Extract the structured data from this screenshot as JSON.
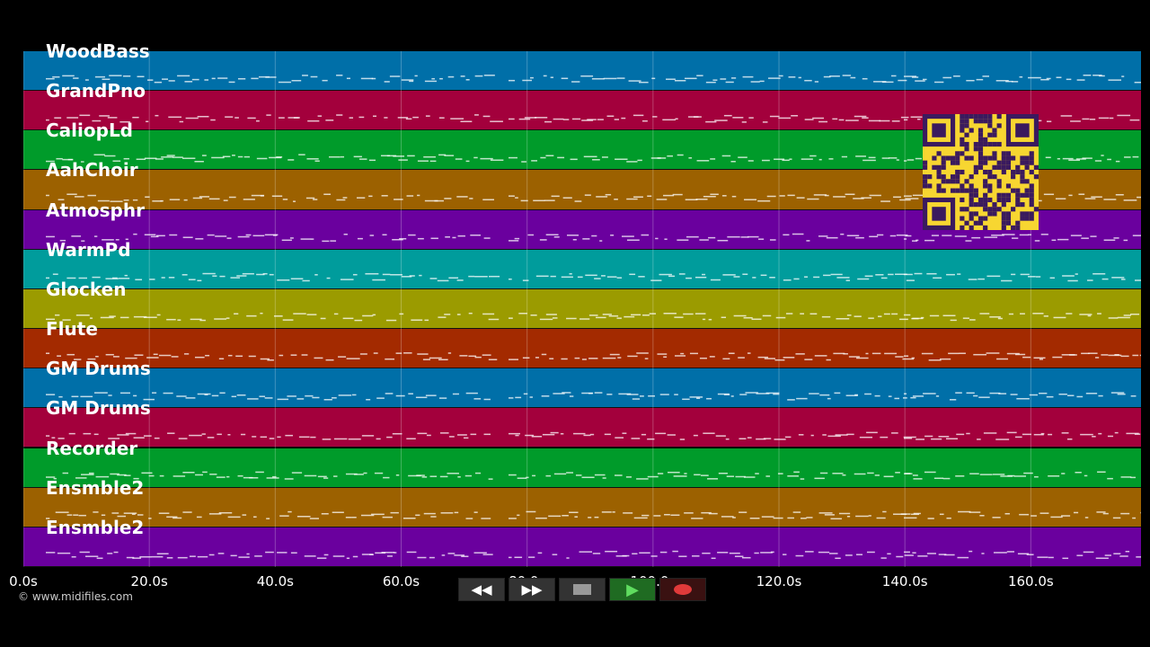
{
  "tracks": [
    {
      "name": "WoodBass",
      "color": "#006fa8"
    },
    {
      "name": "GrandPno",
      "color": "#a3003c"
    },
    {
      "name": "CaliopLd",
      "color": "#009b2a"
    },
    {
      "name": "AahChoir",
      "color": "#9c6100"
    },
    {
      "name": "Atmosphr",
      "color": "#6a009e"
    },
    {
      "name": "WarmPd",
      "color": "#009c9c"
    },
    {
      "name": "Glocken",
      "color": "#9b9b00"
    },
    {
      "name": "Flute",
      "color": "#a32a00"
    },
    {
      "name": "GM Drums",
      "color": "#006fa8"
    },
    {
      "name": "GM Drums",
      "color": "#a3003c"
    },
    {
      "name": "Recorder",
      "color": "#009b2a"
    },
    {
      "name": "Ensmble2",
      "color": "#9c6100"
    },
    {
      "name": "Ensmble2",
      "color": "#6a009e"
    }
  ],
  "time_axis": {
    "ticks": [
      "0.0s",
      "20.0s",
      "40.0s",
      "60.0s",
      "80.0s",
      "100.0s",
      "120.0s",
      "140.0s",
      "160.0s"
    ],
    "max_seconds": 177.5
  },
  "copyright": "© www.midifiles.com",
  "transport": {
    "rewind_icon": "rewind-icon",
    "forward_icon": "fast-forward-icon",
    "stop_icon": "stop-icon",
    "play_icon": "play-icon",
    "record_icon": "record-icon"
  },
  "qr_icon": "qr-code-icon"
}
